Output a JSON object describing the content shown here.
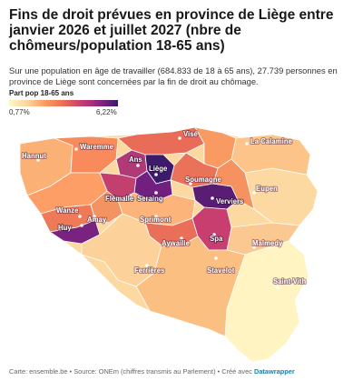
{
  "title": "Fins de droit prévues en province de Liège entre janvier 2026 et juillet 2027 (nbre de chômeurs/population 18-65 ans)",
  "description": "Sur une population en âge de travailler (684.833 de 18 à 65 ans), 27.739 personnes en province de Liège sont concernées par la fin de droit au chômage.",
  "legend": {
    "title": "Part pop 18-65 ans",
    "min": "0,77%",
    "max": "6,22%",
    "colors": [
      "#fff6c8",
      "#fdd49e",
      "#fc9a60",
      "#ee6b52",
      "#c63d73",
      "#8a2580",
      "#3a1b6e"
    ]
  },
  "cities": [
    {
      "name": "Visé"
    },
    {
      "name": "Waremme"
    },
    {
      "name": "La Calamine"
    },
    {
      "name": "Hannut"
    },
    {
      "name": "Ans"
    },
    {
      "name": "Liège"
    },
    {
      "name": "Soumagne"
    },
    {
      "name": "Eupen"
    },
    {
      "name": "Flémalle"
    },
    {
      "name": "Seraing"
    },
    {
      "name": "Verviers"
    },
    {
      "name": "Wanze"
    },
    {
      "name": "Amay"
    },
    {
      "name": "Sprimont"
    },
    {
      "name": "Huy"
    },
    {
      "name": "Aywaille"
    },
    {
      "name": "Spa"
    },
    {
      "name": "Malmedy"
    },
    {
      "name": "Ferrières"
    },
    {
      "name": "Stavelot"
    },
    {
      "name": "Saint-Vith"
    }
  ],
  "footer": {
    "prefix": "Carte: ensemble.be • Source: ONEm (chiffres transmis au Parlement) • Créé avec ",
    "brand": "Datawrapper"
  }
}
